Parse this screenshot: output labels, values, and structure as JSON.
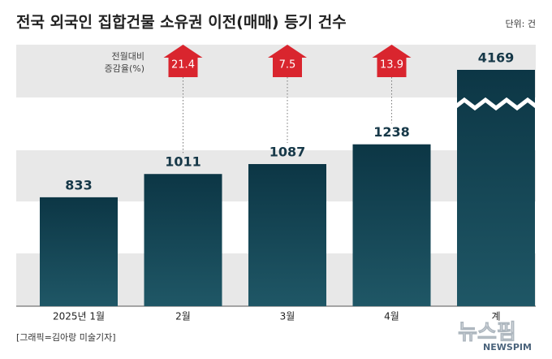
{
  "chart_data": {
    "type": "bar",
    "title": "전국 외국인 집합건물 소유권 이전(매매) 등기 건수",
    "unit_label": "단위: 건",
    "categories": [
      "2025년 1월",
      "2월",
      "3월",
      "4월",
      "계"
    ],
    "values": [
      833,
      1011,
      1087,
      1238,
      4169
    ],
    "ylim": [
      0,
      2000
    ],
    "axis_break": true,
    "change_label": [
      "전월대비",
      "증감율(%)"
    ],
    "changes": [
      null,
      21.4,
      7.5,
      13.9,
      null
    ],
    "arrow_color": "#d9252e",
    "source": "[그래픽=김아랑 미술기자]",
    "watermark": [
      "뉴스핌",
      "NEWSPIM"
    ]
  }
}
